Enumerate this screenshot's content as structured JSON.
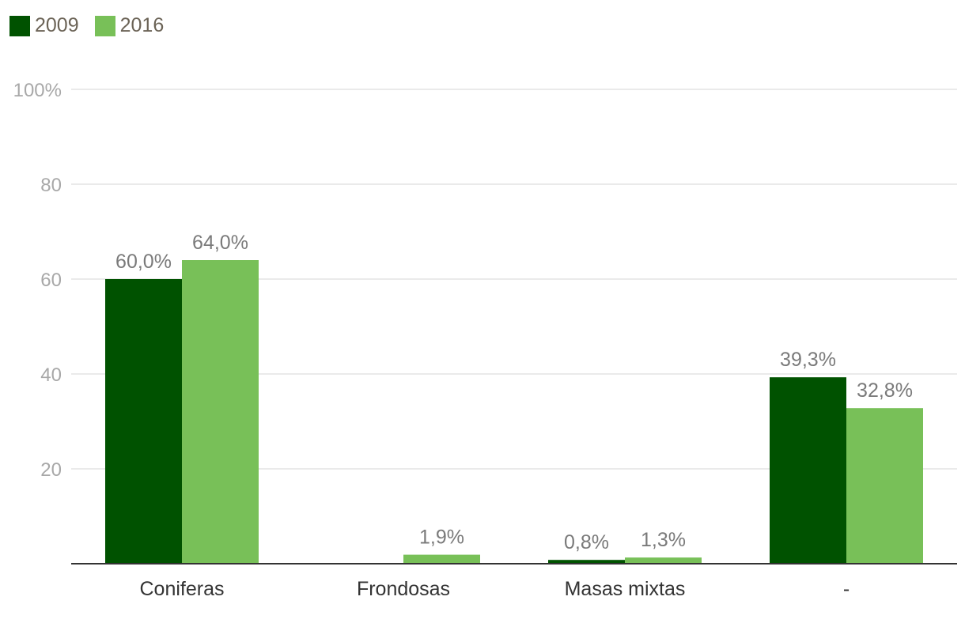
{
  "chart_data": {
    "type": "bar",
    "categories": [
      "Coniferas",
      "Frondosas",
      "Masas mixtas",
      "-"
    ],
    "series": [
      {
        "name": "2009",
        "color": "#005200",
        "values": [
          60.0,
          null,
          0.8,
          39.3
        ],
        "labels": [
          "60,0%",
          "",
          "0,8%",
          "39,3%"
        ]
      },
      {
        "name": "2016",
        "color": "#78c058",
        "values": [
          64.0,
          1.9,
          1.3,
          32.8
        ],
        "labels": [
          "64,0%",
          "1,9%",
          "1,3%",
          "32,8%"
        ]
      }
    ],
    "yticks": [
      {
        "value": 100,
        "label": "100%"
      },
      {
        "value": 80,
        "label": "80"
      },
      {
        "value": 60,
        "label": "60"
      },
      {
        "value": 40,
        "label": "40"
      },
      {
        "value": 20,
        "label": "20"
      }
    ],
    "ylim": [
      0,
      100
    ],
    "grid": true,
    "legend_position": "top-left",
    "title": "",
    "xlabel": "",
    "ylabel": ""
  }
}
